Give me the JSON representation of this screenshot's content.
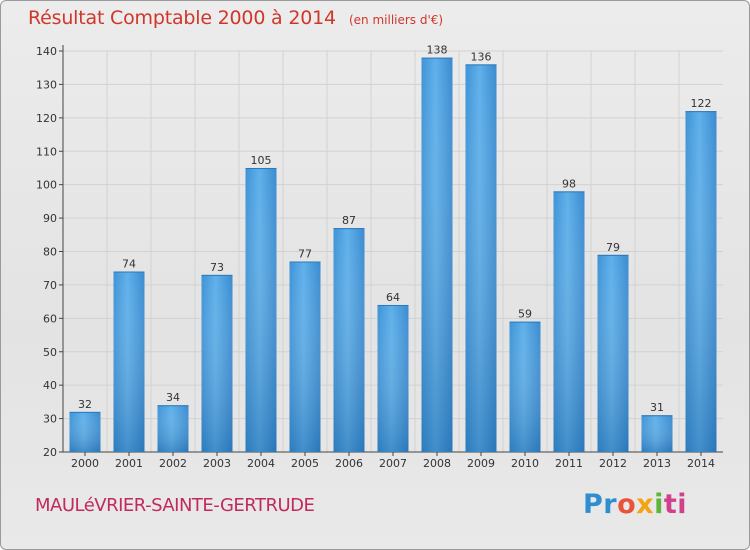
{
  "chart_data": {
    "type": "bar",
    "title": "Résultat Comptable 2000 à 2014",
    "subtitle": "(en milliers d'€)",
    "categories": [
      "2000",
      "2001",
      "2002",
      "2003",
      "2004",
      "2005",
      "2006",
      "2007",
      "2008",
      "2009",
      "2010",
      "2011",
      "2012",
      "2013",
      "2014"
    ],
    "values": [
      32,
      74,
      34,
      73,
      105,
      77,
      87,
      64,
      138,
      136,
      59,
      98,
      79,
      31,
      122
    ],
    "ylim": [
      20,
      140
    ],
    "yticks": [
      20,
      30,
      40,
      50,
      60,
      70,
      80,
      90,
      100,
      110,
      120,
      130,
      140
    ],
    "xlabel": "",
    "ylabel": "",
    "grid": true,
    "bar_color": "#4a9fdf"
  },
  "footer": {
    "commune": "MAULéVRIER-SAINTE-GERTRUDE",
    "logo_parts": [
      "Pr",
      "o",
      "x",
      "i",
      "ti"
    ]
  }
}
